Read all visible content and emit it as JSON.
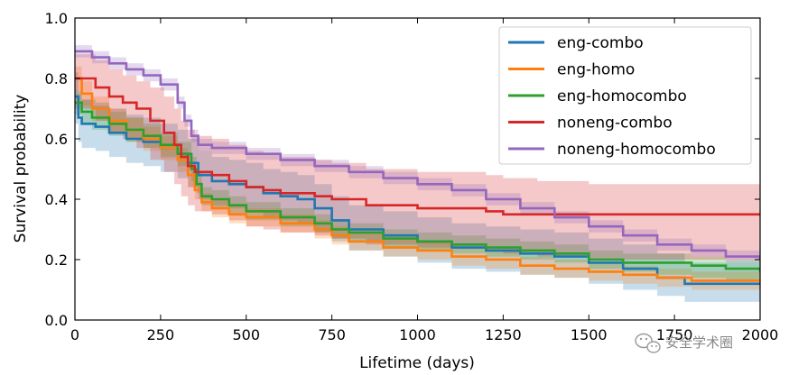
{
  "chart_data": {
    "type": "line",
    "step": true,
    "title": "",
    "xlabel": "Lifetime (days)",
    "ylabel": "Survival probability",
    "xlim": [
      0,
      2000
    ],
    "ylim": [
      0.0,
      1.0
    ],
    "xticks": [
      0,
      250,
      500,
      750,
      1000,
      1250,
      1500,
      1750,
      2000
    ],
    "xtick_labels": [
      "0",
      "250",
      "500",
      "750",
      "1000",
      "1250",
      "1500",
      "1750",
      "2000"
    ],
    "yticks": [
      0.0,
      0.2,
      0.4,
      0.6,
      0.8,
      1.0
    ],
    "ytick_labels": [
      "0.0",
      "0.2",
      "0.4",
      "0.6",
      "0.8",
      "1.0"
    ],
    "grid": false,
    "legend_position": "top-right",
    "series": [
      {
        "name": "eng-combo",
        "color": "#1f77b4",
        "x": [
          0,
          10,
          20,
          60,
          100,
          150,
          200,
          250,
          300,
          330,
          360,
          400,
          450,
          500,
          550,
          600,
          650,
          700,
          750,
          800,
          900,
          1000,
          1100,
          1200,
          1300,
          1400,
          1500,
          1600,
          1700,
          1780,
          1850,
          2000
        ],
        "y": [
          0.74,
          0.67,
          0.65,
          0.64,
          0.62,
          0.6,
          0.59,
          0.57,
          0.55,
          0.52,
          0.48,
          0.46,
          0.45,
          0.44,
          0.42,
          0.41,
          0.4,
          0.37,
          0.33,
          0.3,
          0.28,
          0.26,
          0.24,
          0.23,
          0.22,
          0.21,
          0.19,
          0.17,
          0.14,
          0.12,
          0.12,
          0.12
        ],
        "ci_low": [
          0.65,
          0.59,
          0.57,
          0.56,
          0.54,
          0.52,
          0.51,
          0.49,
          0.47,
          0.44,
          0.4,
          0.38,
          0.37,
          0.36,
          0.34,
          0.33,
          0.32,
          0.29,
          0.26,
          0.23,
          0.21,
          0.19,
          0.17,
          0.16,
          0.15,
          0.14,
          0.12,
          0.1,
          0.08,
          0.06,
          0.06,
          0.06
        ],
        "ci_high": [
          0.82,
          0.75,
          0.73,
          0.72,
          0.7,
          0.68,
          0.67,
          0.65,
          0.63,
          0.6,
          0.56,
          0.54,
          0.53,
          0.52,
          0.5,
          0.49,
          0.48,
          0.45,
          0.41,
          0.38,
          0.36,
          0.34,
          0.32,
          0.31,
          0.3,
          0.29,
          0.27,
          0.25,
          0.22,
          0.19,
          0.19,
          0.19
        ]
      },
      {
        "name": "eng-homo",
        "color": "#ff7f0e",
        "x": [
          0,
          20,
          50,
          100,
          150,
          200,
          250,
          300,
          330,
          350,
          370,
          400,
          450,
          500,
          600,
          700,
          750,
          800,
          900,
          1000,
          1100,
          1200,
          1300,
          1400,
          1500,
          1600,
          1700,
          1800,
          2000
        ],
        "y": [
          0.8,
          0.75,
          0.7,
          0.66,
          0.63,
          0.6,
          0.57,
          0.53,
          0.48,
          0.43,
          0.39,
          0.37,
          0.35,
          0.34,
          0.32,
          0.3,
          0.28,
          0.26,
          0.24,
          0.23,
          0.21,
          0.2,
          0.18,
          0.17,
          0.16,
          0.15,
          0.14,
          0.13,
          0.13
        ],
        "ci_low": [
          0.76,
          0.71,
          0.66,
          0.62,
          0.59,
          0.56,
          0.53,
          0.49,
          0.44,
          0.4,
          0.36,
          0.34,
          0.32,
          0.31,
          0.29,
          0.27,
          0.25,
          0.23,
          0.21,
          0.2,
          0.18,
          0.17,
          0.15,
          0.14,
          0.13,
          0.12,
          0.11,
          0.1,
          0.1
        ],
        "ci_high": [
          0.84,
          0.79,
          0.74,
          0.7,
          0.67,
          0.64,
          0.61,
          0.57,
          0.52,
          0.46,
          0.42,
          0.4,
          0.38,
          0.37,
          0.35,
          0.33,
          0.31,
          0.29,
          0.27,
          0.26,
          0.24,
          0.23,
          0.21,
          0.2,
          0.19,
          0.18,
          0.17,
          0.16,
          0.16
        ]
      },
      {
        "name": "eng-homocombo",
        "color": "#2ca02c",
        "x": [
          0,
          20,
          50,
          100,
          150,
          200,
          250,
          300,
          340,
          355,
          370,
          400,
          450,
          500,
          600,
          700,
          750,
          800,
          900,
          1000,
          1100,
          1200,
          1300,
          1400,
          1500,
          1600,
          1700,
          1800,
          1900,
          2000
        ],
        "y": [
          0.72,
          0.69,
          0.67,
          0.65,
          0.63,
          0.61,
          0.58,
          0.55,
          0.5,
          0.45,
          0.41,
          0.4,
          0.38,
          0.36,
          0.34,
          0.32,
          0.3,
          0.29,
          0.27,
          0.26,
          0.25,
          0.24,
          0.23,
          0.22,
          0.2,
          0.19,
          0.19,
          0.18,
          0.17,
          0.16
        ],
        "ci_low": [
          0.68,
          0.65,
          0.63,
          0.61,
          0.59,
          0.57,
          0.54,
          0.51,
          0.46,
          0.42,
          0.38,
          0.37,
          0.35,
          0.33,
          0.31,
          0.29,
          0.27,
          0.26,
          0.24,
          0.23,
          0.22,
          0.21,
          0.2,
          0.19,
          0.17,
          0.16,
          0.15,
          0.14,
          0.13,
          0.12
        ],
        "ci_high": [
          0.76,
          0.73,
          0.71,
          0.69,
          0.67,
          0.65,
          0.62,
          0.59,
          0.54,
          0.49,
          0.44,
          0.43,
          0.41,
          0.39,
          0.37,
          0.35,
          0.33,
          0.32,
          0.3,
          0.29,
          0.28,
          0.27,
          0.26,
          0.25,
          0.23,
          0.22,
          0.22,
          0.21,
          0.2,
          0.19
        ]
      },
      {
        "name": "noneng-combo",
        "color": "#d62728",
        "x": [
          0,
          60,
          100,
          140,
          180,
          220,
          260,
          290,
          310,
          330,
          350,
          400,
          450,
          500,
          550,
          600,
          700,
          750,
          850,
          1000,
          1200,
          1250,
          1350,
          1500,
          2000
        ],
        "y": [
          0.8,
          0.77,
          0.74,
          0.72,
          0.7,
          0.66,
          0.62,
          0.58,
          0.54,
          0.51,
          0.49,
          0.48,
          0.46,
          0.44,
          0.43,
          0.42,
          0.41,
          0.4,
          0.38,
          0.37,
          0.36,
          0.35,
          0.35,
          0.35,
          0.35
        ],
        "ci_low": [
          0.7,
          0.66,
          0.62,
          0.6,
          0.57,
          0.53,
          0.49,
          0.45,
          0.41,
          0.38,
          0.36,
          0.35,
          0.33,
          0.31,
          0.3,
          0.29,
          0.28,
          0.27,
          0.25,
          0.24,
          0.23,
          0.22,
          0.21,
          0.2,
          0.26
        ],
        "ci_high": [
          0.88,
          0.86,
          0.83,
          0.81,
          0.79,
          0.77,
          0.74,
          0.7,
          0.66,
          0.63,
          0.61,
          0.6,
          0.58,
          0.56,
          0.55,
          0.54,
          0.53,
          0.52,
          0.5,
          0.49,
          0.48,
          0.47,
          0.46,
          0.45,
          0.45
        ]
      },
      {
        "name": "noneng-homocombo",
        "color": "#9467bd",
        "x": [
          0,
          50,
          100,
          150,
          200,
          250,
          300,
          320,
          340,
          360,
          400,
          500,
          600,
          700,
          800,
          900,
          1000,
          1100,
          1200,
          1300,
          1400,
          1500,
          1600,
          1700,
          1800,
          1900,
          2000
        ],
        "y": [
          0.89,
          0.87,
          0.85,
          0.83,
          0.81,
          0.78,
          0.72,
          0.66,
          0.61,
          0.58,
          0.57,
          0.55,
          0.53,
          0.51,
          0.49,
          0.47,
          0.45,
          0.43,
          0.4,
          0.37,
          0.34,
          0.31,
          0.28,
          0.25,
          0.23,
          0.21,
          0.2
        ],
        "ci_low": [
          0.87,
          0.85,
          0.83,
          0.81,
          0.79,
          0.76,
          0.7,
          0.64,
          0.59,
          0.56,
          0.55,
          0.53,
          0.51,
          0.49,
          0.47,
          0.45,
          0.43,
          0.41,
          0.38,
          0.35,
          0.32,
          0.29,
          0.26,
          0.23,
          0.21,
          0.19,
          0.18
        ],
        "ci_high": [
          0.91,
          0.89,
          0.87,
          0.85,
          0.83,
          0.8,
          0.74,
          0.68,
          0.63,
          0.6,
          0.59,
          0.57,
          0.55,
          0.53,
          0.51,
          0.49,
          0.47,
          0.45,
          0.42,
          0.39,
          0.36,
          0.33,
          0.3,
          0.27,
          0.25,
          0.23,
          0.22
        ]
      }
    ]
  },
  "watermark": {
    "text": "安全学术圈",
    "icon": "wechat-icon"
  }
}
